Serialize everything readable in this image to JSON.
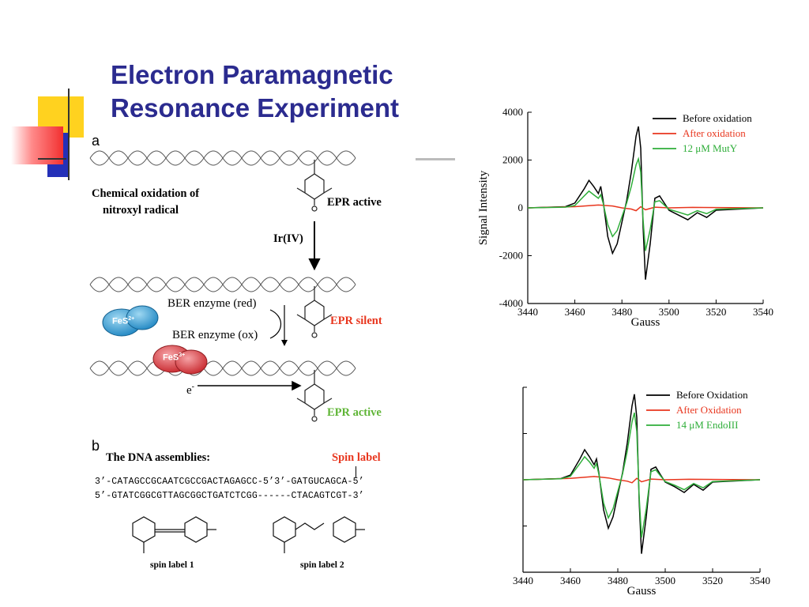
{
  "slide": {
    "title_line1": "Electron Paramagnetic",
    "title_line2": "Resonance Experiment"
  },
  "colors": {
    "title": "#2b2b8f",
    "before": "#000000",
    "after": "#e8361e",
    "enzyme": "#2fae3a",
    "fes_blue": "#3aa5d8",
    "fes_red": "#e0373e",
    "deco_yellow": "#ffd21f",
    "deco_blue": "#2430b8",
    "deco_red": "#f23030"
  },
  "panel_a": {
    "letter": "a",
    "oxidation_label": "Chemical oxidation of",
    "oxidation_label2": "nitroxyl radical",
    "epr_active_1": "EPR active",
    "ir_label": "Ir(IV)",
    "ber_red": "BER enzyme (red)",
    "ber_ox": "BER enzyme (ox)",
    "epr_silent": "EPR silent",
    "fes2": "FeS",
    "fes2_sup": "2+",
    "fes3": "FeS",
    "fes3_sup": "3+",
    "electron": "e",
    "electron_sup": "-",
    "epr_active_2": "EPR active"
  },
  "panel_b": {
    "letter": "b",
    "assemblies_label": "The DNA assemblies:",
    "spin_label": "Spin label",
    "seq_top": "3’-CATAGCCGCAATCGCCGACTAGAGCC-5’3’-GATGUCAGCA-5’",
    "seq_bottom": "5’-GTATCGGCGTTAGCGGCTGATCTCGG------CTACAGTCGT-3’",
    "spin_label_1": "spin label 1",
    "spin_label_2": "spin label 2"
  },
  "chart_data": [
    {
      "type": "line",
      "title": "",
      "xlabel": "Gauss",
      "ylabel": "Signal Intensity",
      "xlim": [
        3440,
        3540
      ],
      "ylim": [
        -4000,
        4000
      ],
      "xticks": [
        3440,
        3460,
        3480,
        3500,
        3520,
        3540
      ],
      "yticks": [
        -4000,
        -2000,
        0,
        2000,
        4000
      ],
      "legend": "top-right",
      "series": [
        {
          "name": "Before oxidation",
          "color": "#000000",
          "x": [
            3440,
            3456,
            3460,
            3464,
            3466,
            3468,
            3470,
            3471,
            3472,
            3474,
            3476,
            3478,
            3482,
            3484,
            3486,
            3487,
            3488,
            3489,
            3490,
            3492,
            3494,
            3496,
            3498,
            3500,
            3504,
            3508,
            3512,
            3516,
            3520,
            3540
          ],
          "y": [
            0,
            50,
            200,
            800,
            1150,
            900,
            600,
            900,
            300,
            -1200,
            -1900,
            -1500,
            300,
            1500,
            3000,
            3400,
            2500,
            -800,
            -3000,
            -1500,
            400,
            500,
            200,
            -100,
            -300,
            -500,
            -200,
            -400,
            -100,
            0
          ]
        },
        {
          "name": "After oxidation",
          "color": "#e8361e",
          "x": [
            3440,
            3460,
            3470,
            3476,
            3480,
            3484,
            3486,
            3488,
            3490,
            3494,
            3500,
            3510,
            3540
          ],
          "y": [
            0,
            50,
            120,
            80,
            0,
            -50,
            -120,
            50,
            -80,
            30,
            0,
            20,
            0
          ]
        },
        {
          "name": "12 μM MutY",
          "color": "#2fae3a",
          "x": [
            3440,
            3456,
            3460,
            3464,
            3466,
            3468,
            3470,
            3471,
            3472,
            3474,
            3476,
            3478,
            3482,
            3484,
            3486,
            3487,
            3488,
            3489,
            3490,
            3492,
            3494,
            3496,
            3498,
            3500,
            3504,
            3508,
            3512,
            3516,
            3520,
            3540
          ],
          "y": [
            0,
            30,
            100,
            500,
            700,
            550,
            400,
            550,
            200,
            -700,
            -1200,
            -950,
            200,
            900,
            1800,
            2050,
            1500,
            -500,
            -1800,
            -900,
            250,
            300,
            120,
            -60,
            -180,
            -300,
            -120,
            -240,
            -60,
            0
          ]
        }
      ]
    },
    {
      "type": "line",
      "title": "",
      "xlabel": "Gauss",
      "ylabel": "",
      "xlim": [
        3440,
        3540
      ],
      "xticks": [
        3440,
        3460,
        3480,
        3500,
        3520,
        3540
      ],
      "legend": "top-right",
      "series": [
        {
          "name": "Before Oxidation",
          "color": "#000000",
          "x": [
            3440,
            3456,
            3460,
            3464,
            3466,
            3468,
            3470,
            3471,
            3472,
            3474,
            3476,
            3478,
            3482,
            3484,
            3486,
            3487,
            3488,
            3489,
            3490,
            3492,
            3494,
            3496,
            3498,
            3500,
            3504,
            3508,
            3512,
            3516,
            3520,
            3540
          ],
          "y": [
            0,
            50,
            200,
            900,
            1300,
            1000,
            650,
            900,
            300,
            -1300,
            -2100,
            -1600,
            300,
            1600,
            3200,
            3700,
            2700,
            -900,
            -3200,
            -1600,
            450,
            550,
            220,
            -100,
            -300,
            -550,
            -200,
            -450,
            -100,
            0
          ]
        },
        {
          "name": "After Oxidation",
          "color": "#e8361e",
          "x": [
            3440,
            3460,
            3470,
            3476,
            3480,
            3484,
            3486,
            3488,
            3490,
            3494,
            3500,
            3510,
            3540
          ],
          "y": [
            0,
            60,
            140,
            80,
            0,
            -60,
            -130,
            60,
            -90,
            30,
            0,
            20,
            0
          ]
        },
        {
          "name": "14 μM EndoIII",
          "color": "#2fae3a",
          "x": [
            3440,
            3456,
            3460,
            3464,
            3466,
            3468,
            3470,
            3471,
            3472,
            3474,
            3476,
            3478,
            3482,
            3484,
            3486,
            3487,
            3488,
            3489,
            3490,
            3492,
            3494,
            3496,
            3498,
            3500,
            3504,
            3508,
            3512,
            3516,
            3520,
            3540
          ],
          "y": [
            0,
            40,
            150,
            700,
            1000,
            780,
            500,
            700,
            240,
            -1000,
            -1650,
            -1250,
            250,
            1250,
            2500,
            2900,
            2100,
            -700,
            -2500,
            -1250,
            350,
            430,
            170,
            -80,
            -240,
            -430,
            -160,
            -350,
            -80,
            0
          ]
        }
      ]
    }
  ]
}
